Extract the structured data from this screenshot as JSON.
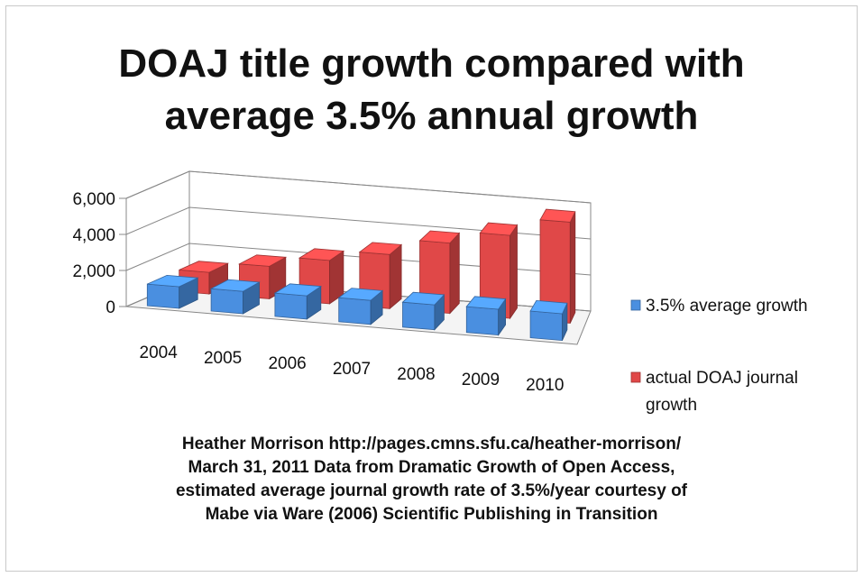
{
  "chart_data": {
    "type": "bar",
    "title_lines": [
      "DOAJ title growth compared with",
      "average 3.5% annual growth"
    ],
    "categories": [
      "2004",
      "2005",
      "2006",
      "2007",
      "2008",
      "2009",
      "2010"
    ],
    "series": [
      {
        "name": "3.5% average growth",
        "color": "#4a8fe0",
        "values": [
          1200,
          1240,
          1290,
          1330,
          1380,
          1430,
          1480
        ]
      },
      {
        "name": "actual DOAJ journal growth",
        "color": "#e04848",
        "values": [
          1200,
          1800,
          2400,
          3000,
          3900,
          4600,
          5600
        ]
      }
    ],
    "y_ticks": [
      "0",
      "2,000",
      "4,000",
      "6,000"
    ],
    "ylim": [
      0,
      6000
    ],
    "grid": true,
    "legend_position": "right",
    "chart_style": "3d-clustered-column"
  },
  "credit_lines": [
    "Heather Morrison http://pages.cmns.sfu.ca/heather-morrison/",
    "March 31, 2011 Data from Dramatic Growth of Open Access,",
    "estimated average journal growth rate of 3.5%/year courtesy of",
    "Mabe via Ware (2006) Scientific Publishing in Transition"
  ]
}
